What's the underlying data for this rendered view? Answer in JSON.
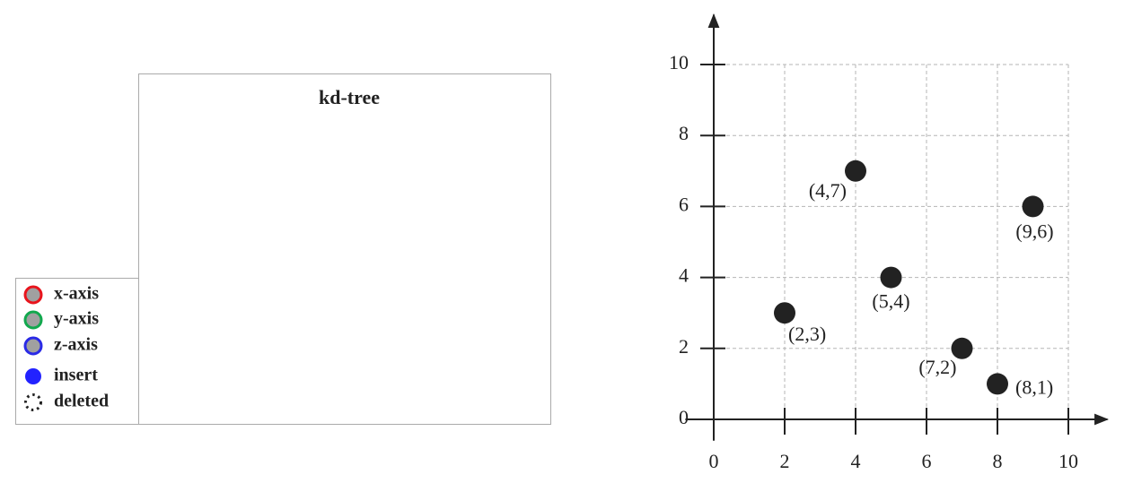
{
  "panel": {
    "title": "kd-tree"
  },
  "legend": {
    "items": [
      {
        "label": "x-axis",
        "color": "#e8141c"
      },
      {
        "label": "y-axis",
        "color": "#12a84e"
      },
      {
        "label": "z-axis",
        "color": "#2a2ae6"
      },
      {
        "label": "insert",
        "color": "#2222ff"
      },
      {
        "label": "deleted",
        "color": "#222222"
      }
    ]
  },
  "chart_data": {
    "type": "scatter",
    "x": [
      2,
      4,
      5,
      7,
      8,
      9
    ],
    "values": [
      3,
      7,
      4,
      2,
      1,
      6
    ],
    "value_labels": [
      "(2,3)",
      "(4,7)",
      "(5,4)",
      "(7,2)",
      "(8,1)",
      "(9,6)"
    ],
    "color": "#222222",
    "xlim": [
      -0.8,
      11.1
    ],
    "ylim": [
      -0.6,
      11.4
    ],
    "xticks": [
      0,
      2,
      4,
      6,
      8,
      10
    ],
    "yticks": [
      0,
      2,
      4,
      6,
      8,
      10
    ],
    "grid": true
  }
}
